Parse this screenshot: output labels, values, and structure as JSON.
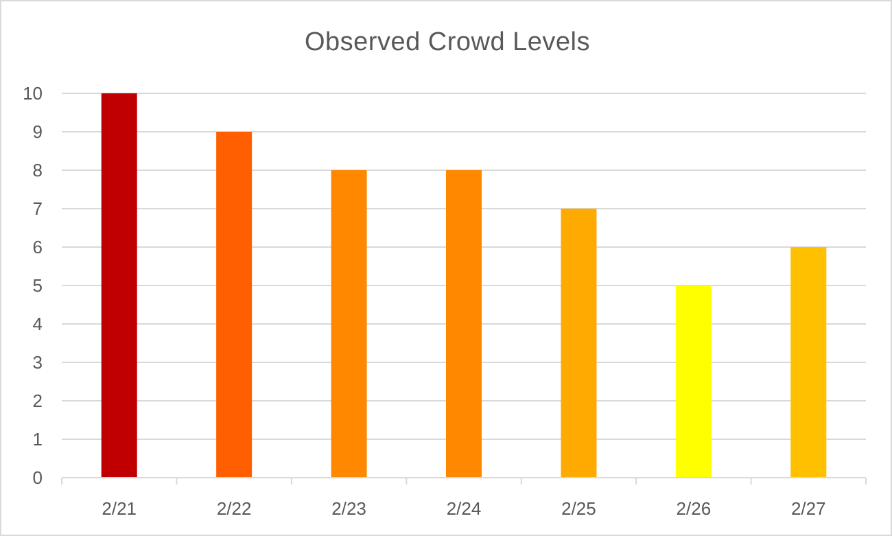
{
  "chart_data": {
    "type": "bar",
    "title": "Observed Crowd Levels",
    "xlabel": "",
    "ylabel": "",
    "categories": [
      "2/21",
      "2/22",
      "2/23",
      "2/24",
      "2/25",
      "2/26",
      "2/27"
    ],
    "values": [
      10,
      9,
      8,
      8,
      7,
      5,
      6
    ],
    "bar_colors": [
      "#C00000",
      "#FF5F00",
      "#FF8800",
      "#FF8800",
      "#FFAA00",
      "#FFFF00",
      "#FFC000"
    ],
    "ylim": [
      0,
      10
    ],
    "y_ticks": [
      0,
      1,
      2,
      3,
      4,
      5,
      6,
      7,
      8,
      9,
      10
    ],
    "grid": true,
    "legend": "none",
    "colors": {
      "gridline": "#d9d9d9",
      "axis": "#d9d9d9",
      "text": "#595959",
      "border": "#d9d9d9"
    }
  }
}
